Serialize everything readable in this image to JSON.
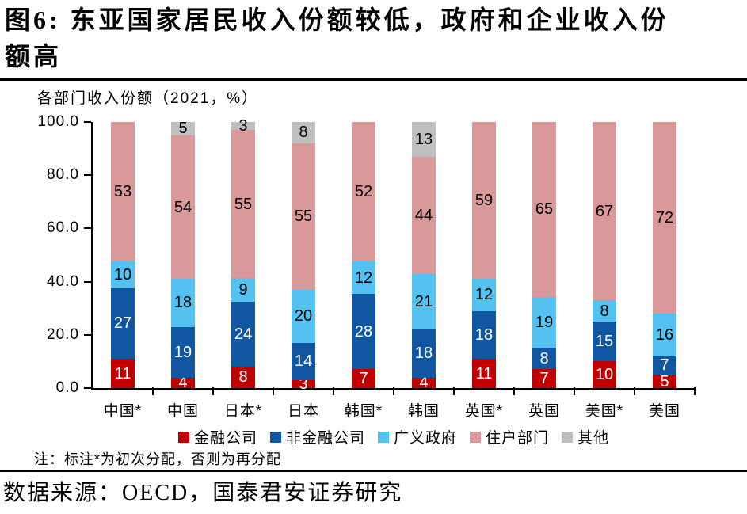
{
  "title": "图6: 东亚国家居民收入份额较低，政府和企业收入份\n额高",
  "note": "注：标注*为初次分配，否则为再分配",
  "source": "数据来源：OECD，国泰君安证券研究",
  "colors": {
    "financial": "#c00000",
    "nonfinancial": "#1156a0",
    "government": "#54c2f0",
    "household": "#d9989a",
    "other": "#bfbfbf",
    "axis": "#000000"
  },
  "chart_data": {
    "type": "bar",
    "stacked": true,
    "title": "各部门收入份额（2021，%）",
    "categories": [
      "中国*",
      "中国",
      "日本*",
      "日本",
      "韩国*",
      "韩国",
      "英国*",
      "英国",
      "美国*",
      "美国"
    ],
    "series": [
      {
        "name": "金融公司",
        "color": "#c00000",
        "label_color": "#ffffff",
        "values": [
          11,
          4,
          8,
          3,
          7,
          4,
          11,
          7,
          10,
          5
        ]
      },
      {
        "name": "非金融公司",
        "color": "#1156a0",
        "label_color": "#ffffff",
        "values": [
          27,
          19,
          24,
          14,
          28,
          18,
          18,
          8,
          15,
          7
        ]
      },
      {
        "name": "广义政府",
        "color": "#54c2f0",
        "label_color": "#000000",
        "values": [
          10,
          18,
          9,
          20,
          12,
          21,
          12,
          19,
          8,
          16
        ]
      },
      {
        "name": "住户部门",
        "color": "#d9989a",
        "label_color": "#000000",
        "values": [
          53,
          54,
          55,
          55,
          52,
          44,
          59,
          65,
          67,
          72
        ]
      },
      {
        "name": "其他",
        "color": "#bfbfbf",
        "label_color": "#000000",
        "values": [
          0,
          5,
          3,
          8,
          0,
          13,
          0,
          0,
          0,
          0
        ]
      }
    ],
    "y_ticks": [
      "100.0",
      "80.0",
      "60.0",
      "40.0",
      "20.0",
      "0.0"
    ],
    "ylim": [
      0,
      100
    ],
    "grid": false,
    "legend_position": "bottom",
    "value_labels": true
  }
}
